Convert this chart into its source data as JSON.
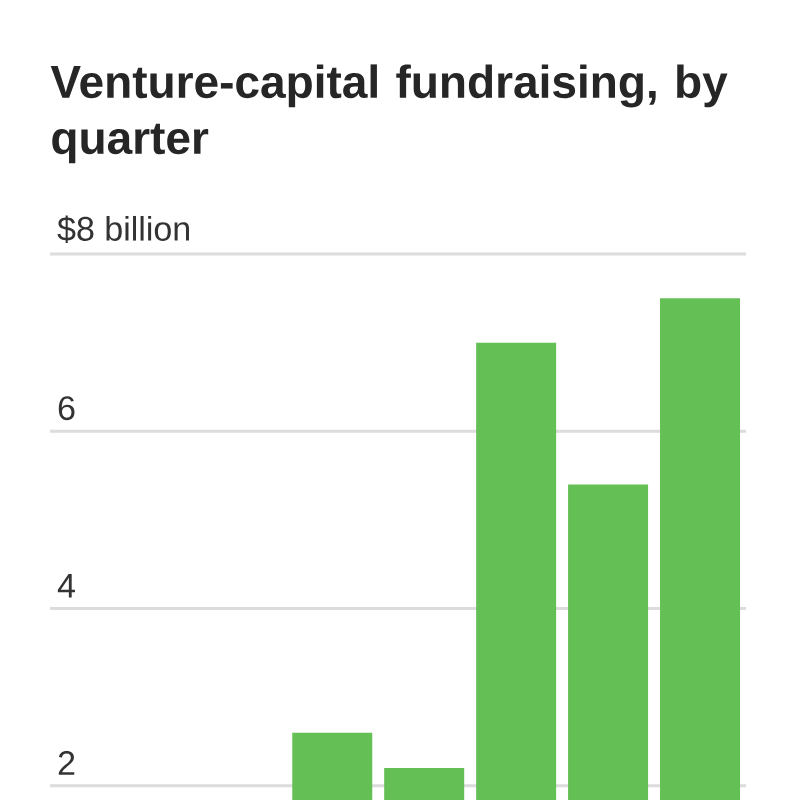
{
  "chart_data": {
    "type": "bar",
    "title": "Venture-capital fundraising, by quarter",
    "categories": [
      null,
      null,
      null,
      null,
      null,
      null,
      null
    ],
    "values": [
      null,
      null,
      2.6,
      2.2,
      7.0,
      5.4,
      7.5
    ],
    "color": "#64bf55",
    "ylim": [
      1.84,
      8
    ],
    "yticks": [
      2,
      4,
      6,
      {
        "value": 8,
        "label": "$8 billion"
      }
    ],
    "grid": "y",
    "tick_labels": "y"
  }
}
